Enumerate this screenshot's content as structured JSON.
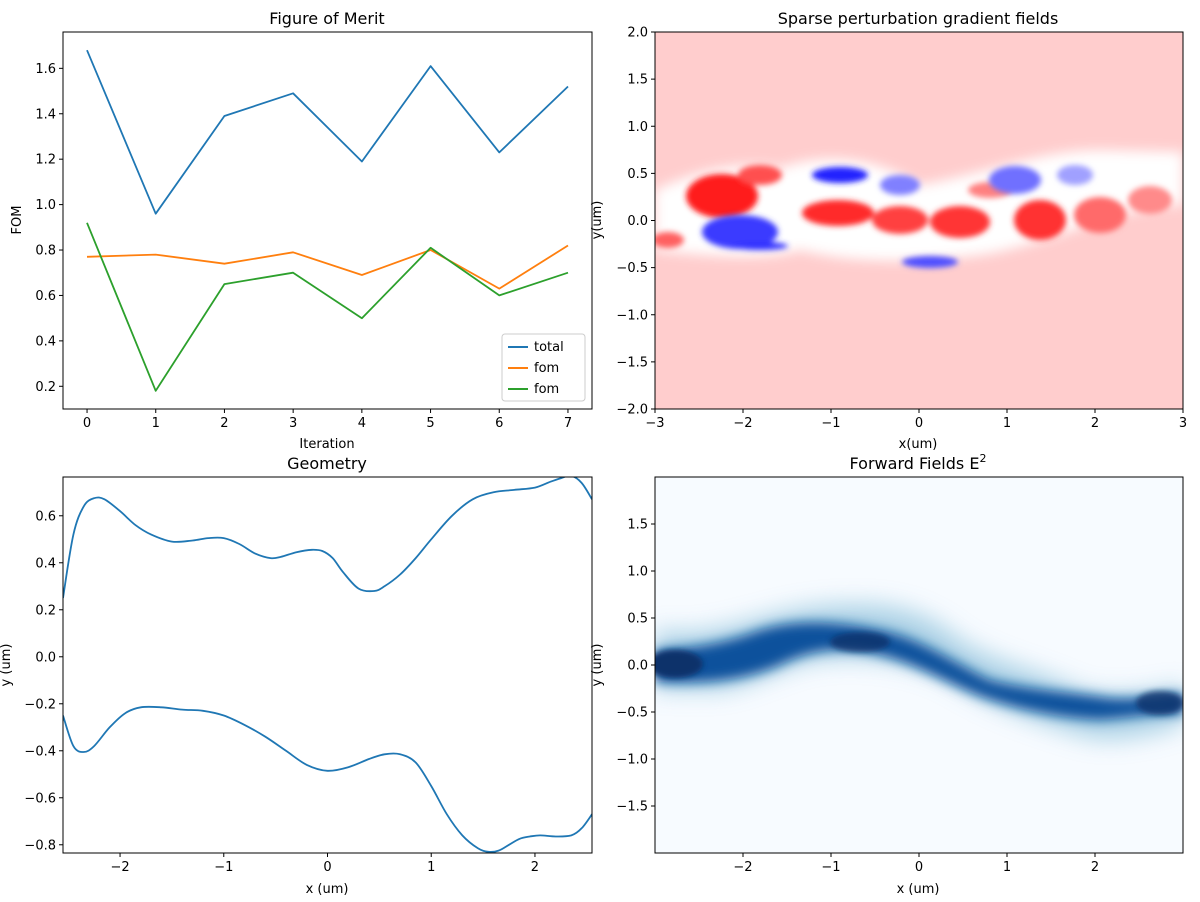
{
  "colors": {
    "total": "#1f77b4",
    "fom_orange": "#ff7f0e",
    "fom_green": "#2ca02c",
    "field_blue": "#08306b",
    "grad_red": "#ff0000",
    "grad_blue": "#0000ff"
  },
  "chart_data": [
    {
      "type": "line",
      "title": "Figure of Merit",
      "xlabel": "Iteration",
      "ylabel": "FOM",
      "x": [
        0,
        1,
        2,
        3,
        4,
        5,
        6,
        7
      ],
      "series": [
        {
          "name": "total",
          "color": "#1f77b4",
          "values": [
            1.68,
            0.96,
            1.39,
            1.49,
            1.19,
            1.61,
            1.23,
            1.52
          ]
        },
        {
          "name": "fom",
          "color": "#ff7f0e",
          "values": [
            0.77,
            0.78,
            0.74,
            0.79,
            0.69,
            0.8,
            0.63,
            0.82
          ]
        },
        {
          "name": "fom",
          "color": "#2ca02c",
          "values": [
            0.92,
            0.18,
            0.65,
            0.7,
            0.5,
            0.81,
            0.6,
            0.7
          ]
        }
      ],
      "xlim": [
        -0.35,
        7.35
      ],
      "ylim": [
        0.1,
        1.76
      ],
      "xticks": [
        0,
        1,
        2,
        3,
        4,
        5,
        6,
        7
      ],
      "yticks": [
        0.2,
        0.4,
        0.6,
        0.8,
        1.0,
        1.2,
        1.4,
        1.6
      ],
      "ytick_labels": [
        "0.2",
        "0.4",
        "0.6",
        "0.8",
        "1.0",
        "1.2",
        "1.4",
        "1.6"
      ],
      "legend": "lower-right"
    },
    {
      "type": "heatmap",
      "title": "Sparse perturbation gradient fields",
      "xlabel": "x(um)",
      "ylabel": "y(um)",
      "colormap": "seismic",
      "xlim": [
        -3,
        3
      ],
      "ylim": [
        -2,
        2
      ],
      "xticks": [
        -3,
        -2,
        -1,
        0,
        1,
        2,
        3
      ],
      "xtick_labels": [
        "−3",
        "−2",
        "−1",
        "0",
        "1",
        "2",
        "3"
      ],
      "yticks": [
        -2.0,
        -1.5,
        -1.0,
        -0.5,
        0.0,
        0.5,
        1.0,
        1.5,
        2.0
      ],
      "ytick_labels": [
        "−2.0",
        "−1.5",
        "−1.0",
        "−0.5",
        "0.0",
        "0.5",
        "1.0",
        "1.5",
        "2.0"
      ]
    },
    {
      "type": "line",
      "title": "Geometry",
      "xlabel": "x (um)",
      "ylabel": "y (um)",
      "series": [
        {
          "color": "#1f77b4",
          "x": [
            -2.55,
            -2.45,
            -2.35,
            -2.25,
            -2.15,
            -2.0,
            -1.85,
            -1.7,
            -1.5,
            -1.3,
            -1.15,
            -1.0,
            -0.85,
            -0.7,
            -0.55,
            -0.45,
            -0.3,
            -0.15,
            -0.05,
            0.05,
            0.15,
            0.3,
            0.45,
            0.55,
            0.7,
            0.85,
            1.0,
            1.2,
            1.4,
            1.6,
            1.8,
            2.0,
            2.15,
            2.25,
            2.35,
            2.45,
            2.55
          ],
          "values": [
            0.25,
            0.52,
            0.64,
            0.675,
            0.67,
            0.62,
            0.56,
            0.52,
            0.49,
            0.495,
            0.505,
            0.505,
            0.48,
            0.44,
            0.42,
            0.425,
            0.445,
            0.455,
            0.45,
            0.42,
            0.36,
            0.29,
            0.28,
            0.3,
            0.35,
            0.42,
            0.5,
            0.6,
            0.67,
            0.7,
            0.71,
            0.72,
            0.745,
            0.76,
            0.77,
            0.74,
            0.67
          ]
        },
        {
          "color": "#1f77b4",
          "x": [
            -2.55,
            -2.45,
            -2.35,
            -2.25,
            -2.1,
            -1.95,
            -1.8,
            -1.6,
            -1.4,
            -1.2,
            -1.0,
            -0.8,
            -0.6,
            -0.4,
            -0.2,
            0.0,
            0.2,
            0.4,
            0.55,
            0.7,
            0.85,
            1.0,
            1.15,
            1.3,
            1.45,
            1.55,
            1.65,
            1.75,
            1.85,
            1.95,
            2.05,
            2.2,
            2.35,
            2.45,
            2.55
          ],
          "values": [
            -0.25,
            -0.38,
            -0.405,
            -0.38,
            -0.3,
            -0.24,
            -0.215,
            -0.215,
            -0.225,
            -0.23,
            -0.25,
            -0.29,
            -0.34,
            -0.4,
            -0.46,
            -0.485,
            -0.47,
            -0.435,
            -0.415,
            -0.415,
            -0.45,
            -0.55,
            -0.67,
            -0.76,
            -0.815,
            -0.83,
            -0.825,
            -0.8,
            -0.775,
            -0.765,
            -0.76,
            -0.765,
            -0.76,
            -0.73,
            -0.67
          ]
        }
      ],
      "xlim": [
        -2.55,
        2.55
      ],
      "ylim": [
        -0.835,
        0.765
      ],
      "xticks": [
        -2,
        -1,
        0,
        1,
        2
      ],
      "xtick_labels": [
        "−2",
        "−1",
        "0",
        "1",
        "2"
      ],
      "yticks": [
        -0.8,
        -0.6,
        -0.4,
        -0.2,
        0.0,
        0.2,
        0.4,
        0.6
      ],
      "ytick_labels": [
        "−0.8",
        "−0.6",
        "−0.4",
        "−0.2",
        "0.0",
        "0.2",
        "0.4",
        "0.6"
      ]
    },
    {
      "type": "heatmap",
      "title": "Forward Fields E",
      "title_superscript": "2",
      "xlabel": "x (um)",
      "ylabel": "y (um)",
      "colormap": "Blues",
      "xlim": [
        -3,
        3
      ],
      "ylim": [
        -2,
        2
      ],
      "xticks": [
        -2,
        -1,
        0,
        1,
        2
      ],
      "xtick_labels": [
        "−2",
        "−1",
        "0",
        "1",
        "2"
      ],
      "yticks": [
        -1.5,
        -1.0,
        -0.5,
        0.0,
        0.5,
        1.0,
        1.5
      ],
      "ytick_labels": [
        "−1.5",
        "−1.0",
        "−0.5",
        "0.0",
        "0.5",
        "1.0",
        "1.5"
      ]
    }
  ]
}
